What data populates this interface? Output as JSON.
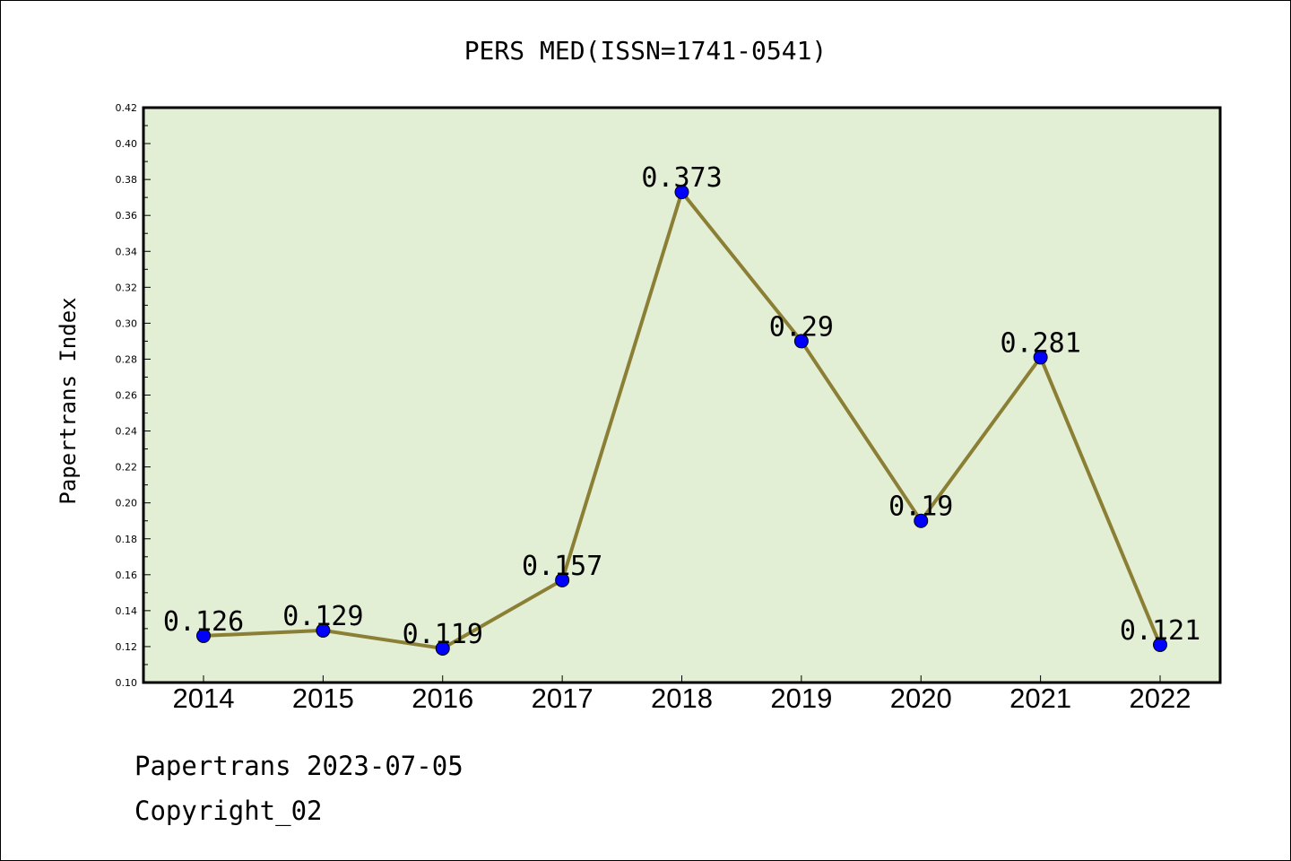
{
  "chart_data": {
    "type": "line",
    "title": "PERS MED(ISSN=1741-0541)",
    "xlabel": "",
    "ylabel": "Papertrans Index",
    "categories": [
      "2014",
      "2015",
      "2016",
      "2017",
      "2018",
      "2019",
      "2020",
      "2021",
      "2022"
    ],
    "series": [
      {
        "values": [
          0.126,
          0.129,
          0.119,
          0.157,
          0.373,
          0.29,
          0.19,
          0.281,
          0.121
        ],
        "labels": [
          "0.126",
          "0.129",
          "0.119",
          "0.157",
          "0.373",
          "0.29",
          "0.19",
          "0.281",
          "0.121"
        ],
        "line_color": "#8B7F35",
        "marker_color": "#0000FF"
      }
    ],
    "ylim": [
      0.1,
      0.42
    ],
    "yticks": [
      "0.10",
      "0.12",
      "0.14",
      "0.16",
      "0.18",
      "0.20",
      "0.22",
      "0.24",
      "0.26",
      "0.28",
      "0.30",
      "0.32",
      "0.34",
      "0.36",
      "0.38",
      "0.40",
      "0.42"
    ],
    "plot_background": "#E2EFD5",
    "grid": false,
    "legend": "none"
  },
  "footer": {
    "line1": "Papertrans 2023-07-05",
    "line2": "Copyright_02"
  }
}
